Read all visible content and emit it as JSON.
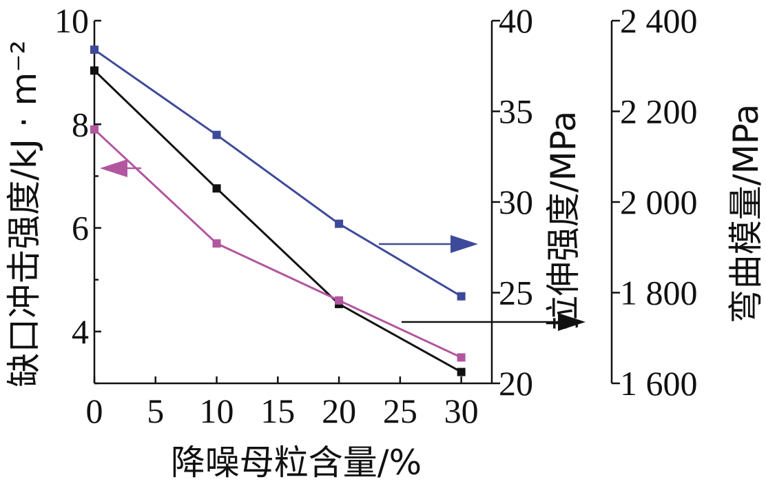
{
  "chart_data": {
    "type": "line",
    "xlabel": "降噪母粒含量/%",
    "x": [
      0,
      10,
      20,
      30
    ],
    "x_ticks": [
      "0",
      "5",
      "10",
      "15",
      "20",
      "25",
      "30"
    ],
    "xlim": [
      0,
      32.5
    ],
    "axes": {
      "left": {
        "label": "缺口冲击强度/kJ · m⁻²",
        "ylim": [
          3,
          10
        ],
        "ticks": [
          "4",
          "6",
          "8",
          "10"
        ]
      },
      "right1": {
        "label": "拉伸强度/MPa",
        "ylim": [
          20,
          40
        ],
        "ticks": [
          "20",
          "25",
          "30",
          "35",
          "40"
        ]
      },
      "right2": {
        "label": "弯曲模量/MPa",
        "ylim": [
          1600,
          2400
        ],
        "ticks": [
          "1 600",
          "1 800",
          "2 000",
          "2 200",
          "2 400"
        ]
      }
    },
    "series": [
      {
        "axis": "right1",
        "color": "#3d4a9a",
        "values": [
          38.4,
          33.7,
          28.8,
          24.8
        ],
        "arrow": "right"
      },
      {
        "axis": "right2",
        "color": "#111111",
        "values": [
          2290,
          2030,
          1775,
          1625
        ],
        "arrow": "right"
      },
      {
        "axis": "left",
        "color": "#b1569f",
        "values": [
          7.9,
          5.7,
          4.6,
          3.5
        ],
        "arrow": "left"
      }
    ],
    "grid": false
  }
}
